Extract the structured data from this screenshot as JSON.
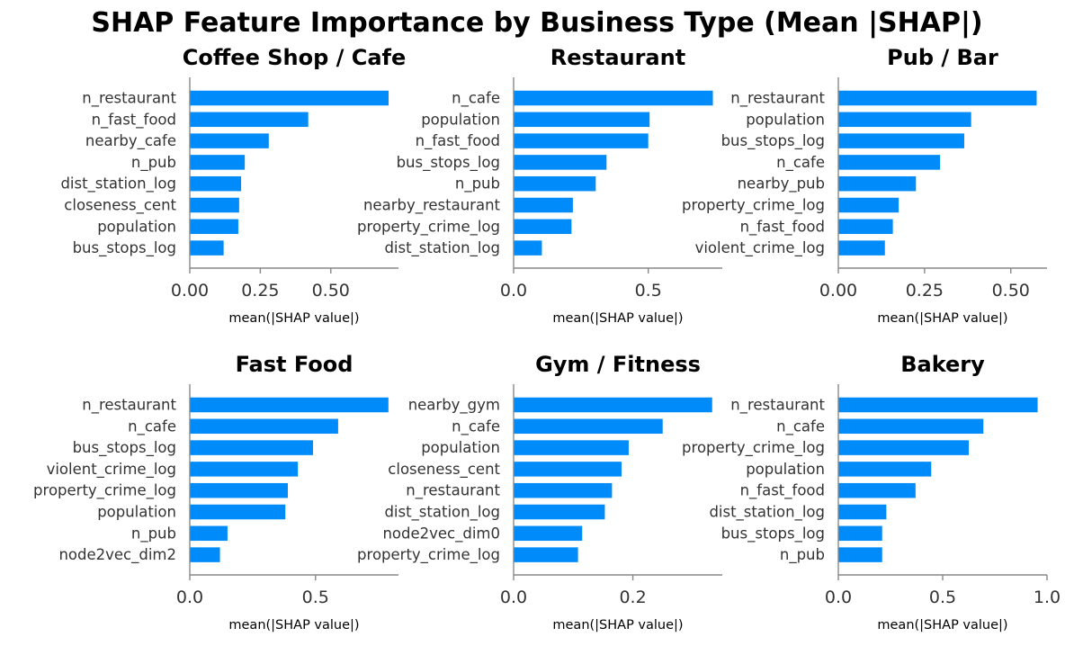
{
  "title": "SHAP Feature Importance by Business Type (Mean |SHAP|)",
  "colors": {
    "bar": "#008bfb",
    "axis": "#888888",
    "text": "#333333"
  },
  "chart_data": [
    {
      "type": "bar",
      "orientation": "horizontal",
      "title": "Coffee Shop / Cafe",
      "xlabel": "mean(|SHAP value|)",
      "xlim": [
        0,
        0.74
      ],
      "xticks": [
        0.0,
        0.25,
        0.5
      ],
      "xtick_labels": [
        "0.00",
        "0.25",
        "0.50"
      ],
      "categories": [
        "n_restaurant",
        "n_fast_food",
        "nearby_cafe",
        "n_pub",
        "dist_station_log",
        "closeness_cent",
        "population",
        "bus_stops_log"
      ],
      "values": [
        0.705,
        0.42,
        0.28,
        0.195,
        0.182,
        0.175,
        0.172,
        0.12
      ]
    },
    {
      "type": "bar",
      "orientation": "horizontal",
      "title": "Restaurant",
      "xlabel": "mean(|SHAP value|)",
      "xlim": [
        0,
        0.775
      ],
      "xticks": [
        0.0,
        0.5
      ],
      "xtick_labels": [
        "0.0",
        "0.5"
      ],
      "categories": [
        "n_cafe",
        "population",
        "n_fast_food",
        "bus_stops_log",
        "n_pub",
        "nearby_restaurant",
        "property_crime_log",
        "dist_station_log"
      ],
      "values": [
        0.74,
        0.505,
        0.5,
        0.345,
        0.305,
        0.22,
        0.215,
        0.105
      ]
    },
    {
      "type": "bar",
      "orientation": "horizontal",
      "title": "Pub / Bar",
      "xlabel": "mean(|SHAP value|)",
      "xlim": [
        0,
        0.605
      ],
      "xticks": [
        0.0,
        0.25,
        0.5
      ],
      "xtick_labels": [
        "0.00",
        "0.25",
        "0.50"
      ],
      "categories": [
        "n_restaurant",
        "population",
        "bus_stops_log",
        "n_cafe",
        "nearby_pub",
        "property_crime_log",
        "n_fast_food",
        "violent_crime_log"
      ],
      "values": [
        0.575,
        0.385,
        0.365,
        0.295,
        0.225,
        0.175,
        0.158,
        0.135
      ]
    },
    {
      "type": "bar",
      "orientation": "horizontal",
      "title": "Fast Food",
      "xlabel": "mean(|SHAP value|)",
      "xlim": [
        0,
        0.83
      ],
      "xticks": [
        0.0,
        0.5
      ],
      "xtick_labels": [
        "0.0",
        "0.5"
      ],
      "categories": [
        "n_restaurant",
        "n_cafe",
        "bus_stops_log",
        "violent_crime_log",
        "property_crime_log",
        "population",
        "n_pub",
        "node2vec_dim2"
      ],
      "values": [
        0.79,
        0.59,
        0.49,
        0.43,
        0.39,
        0.38,
        0.15,
        0.12
      ]
    },
    {
      "type": "bar",
      "orientation": "horizontal",
      "title": "Gym / Fitness",
      "xlabel": "mean(|SHAP value|)",
      "xlim": [
        0,
        0.35
      ],
      "xticks": [
        0.0,
        0.2
      ],
      "xtick_labels": [
        "0.0",
        "0.2"
      ],
      "categories": [
        "nearby_gym",
        "n_cafe",
        "population",
        "closeness_cent",
        "n_restaurant",
        "dist_station_log",
        "node2vec_dim0",
        "property_crime_log"
      ],
      "values": [
        0.333,
        0.25,
        0.193,
        0.181,
        0.165,
        0.153,
        0.115,
        0.108
      ]
    },
    {
      "type": "bar",
      "orientation": "horizontal",
      "title": "Bakery",
      "xlabel": "mean(|SHAP value|)",
      "xlim": [
        0,
        1.0
      ],
      "xticks": [
        0.0,
        0.5,
        1.0
      ],
      "xtick_labels": [
        "0.0",
        "0.5",
        "1.0"
      ],
      "categories": [
        "n_restaurant",
        "n_cafe",
        "property_crime_log",
        "population",
        "n_fast_food",
        "dist_station_log",
        "bus_stops_log",
        "n_pub"
      ],
      "values": [
        0.955,
        0.695,
        0.625,
        0.445,
        0.37,
        0.23,
        0.21,
        0.21
      ]
    }
  ]
}
